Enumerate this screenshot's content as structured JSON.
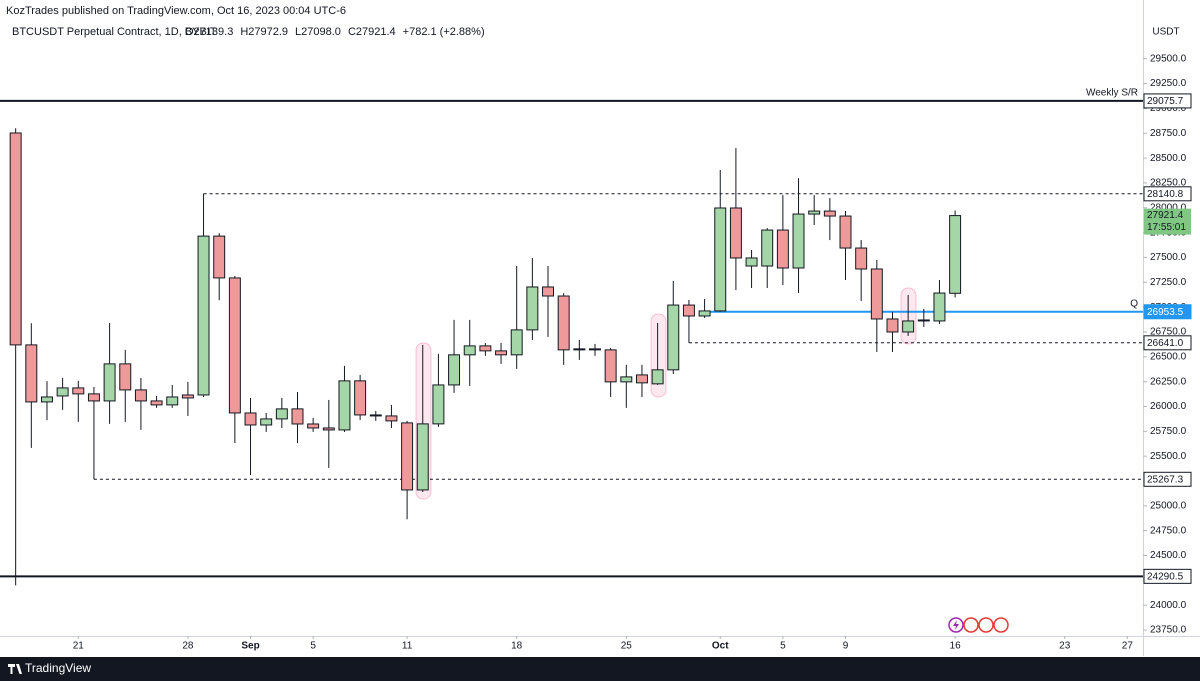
{
  "header": "KozTrades published on TradingView.com, Oct 16, 2023 00:04 UTC-6",
  "brand": "TradingView",
  "chart_data": {
    "type": "candlestick",
    "title": "BTCUSDT Perpetual Contract, 1D, BYBIT",
    "legend_values": [
      "O27139.3",
      "H27972.9",
      "L27098.0",
      "C27921.4",
      "+782.1 (+2.88%)"
    ],
    "currency": "USDT",
    "countdown": "17:55:01",
    "up_color": "#a5d6a7",
    "down_color": "#ef9a9a",
    "wick_color": "#131722",
    "last_price_color": "#81c784",
    "grid": false,
    "x": [
      "Aug 17",
      "Aug 18",
      "Aug 19",
      "Aug 20",
      "Aug 21",
      "Aug 22",
      "Aug 23",
      "Aug 24",
      "Aug 25",
      "Aug 26",
      "Aug 27",
      "Aug 28",
      "Aug 29",
      "Aug 30",
      "Aug 31",
      "Sep 1",
      "Sep 2",
      "Sep 3",
      "Sep 4",
      "Sep 5",
      "Sep 6",
      "Sep 7",
      "Sep 8",
      "Sep 9",
      "Sep 10",
      "Sep 11",
      "Sep 12",
      "Sep 13",
      "Sep 14",
      "Sep 15",
      "Sep 16",
      "Sep 17",
      "Sep 18",
      "Sep 19",
      "Sep 20",
      "Sep 21",
      "Sep 22",
      "Sep 23",
      "Sep 24",
      "Sep 25",
      "Sep 26",
      "Sep 27",
      "Sep 28",
      "Sep 29",
      "Sep 30",
      "Oct 1",
      "Oct 2",
      "Oct 3",
      "Oct 4",
      "Oct 5",
      "Oct 6",
      "Oct 7",
      "Oct 8",
      "Oct 9",
      "Oct 10",
      "Oct 11",
      "Oct 12",
      "Oct 13",
      "Oct 14",
      "Oct 15",
      "Oct 16"
    ],
    "open": [
      28753,
      26620,
      26046,
      26106,
      26187,
      26127,
      26056,
      26429,
      26167,
      26056,
      26016,
      26116,
      26116,
      27715,
      27294,
      25935,
      25814,
      25875,
      25976,
      25824,
      25784,
      25764,
      26258,
      25915,
      25905,
      25835,
      25160,
      25825,
      26217,
      26520,
      26610,
      26560,
      26520,
      26771,
      27203,
      27112,
      26580,
      26570,
      26570,
      26248,
      26318,
      26228,
      26369,
      27021,
      26911,
      26962,
      27998,
      27414,
      27414,
      27776,
      27394,
      27937,
      27967,
      27917,
      27595,
      27384,
      26881,
      26750,
      26861,
      26861,
      27139.3
    ],
    "high": [
      28800,
      26838,
      26255,
      26288,
      26258,
      26197,
      26841,
      26570,
      26288,
      26106,
      26217,
      26248,
      28140.8,
      27745,
      27314,
      26086,
      25935,
      26086,
      26146,
      25885,
      26066,
      26409,
      26318,
      25955,
      26016,
      25855,
      26620,
      26530,
      26872,
      26872,
      26640,
      26640,
      27414,
      27495,
      27414,
      27142,
      26670,
      26630,
      26590,
      26419,
      26419,
      26841,
      27264,
      27072,
      27082,
      28380,
      28601,
      27575,
      27796,
      28128,
      28298,
      28128,
      28098,
      27967,
      27675,
      27475,
      26952,
      27122,
      26982,
      27273,
      27972.9
    ],
    "low": [
      24200,
      25583,
      25862,
      25966,
      25845,
      25267.3,
      25825,
      25845,
      25765,
      25986,
      25986,
      25905,
      26096,
      27070,
      25633,
      25311,
      25744,
      25784,
      25633,
      25744,
      25382,
      25744,
      25865,
      25855,
      25784,
      24865,
      25140,
      25795,
      26137,
      26207,
      26510,
      26429,
      26379,
      26670,
      26700,
      26419,
      26469,
      26510,
      26096,
      25986,
      26096,
      26217,
      26328,
      26641,
      26891,
      26953.5,
      27173,
      27193,
      27193,
      27223,
      27142,
      27826,
      27675,
      27273,
      27062,
      26549,
      26549,
      26710,
      26801,
      26831,
      27098
    ],
    "close": [
      26620,
      26046,
      26096,
      26187,
      26127,
      26056,
      26429,
      26167,
      26056,
      26016,
      26096,
      26086,
      27715,
      27294,
      25935,
      25814,
      25875,
      25976,
      25824,
      25784,
      25764,
      26258,
      25915,
      25905,
      25855,
      25160,
      25825,
      26217,
      26520,
      26610,
      26560,
      26520,
      26771,
      27203,
      27112,
      26570,
      26570,
      26580,
      26248,
      26298,
      26238,
      26369,
      27021,
      26911,
      26962,
      27998,
      27495,
      27495,
      27776,
      27394,
      27937,
      27967,
      27917,
      27595,
      27384,
      26881,
      26750,
      26861,
      26871,
      27142,
      27921.4
    ],
    "xlim": [
      "Aug 16",
      "Oct 28"
    ],
    "xticks": [
      {
        "value": "Aug 21",
        "label": "21"
      },
      {
        "value": "Aug 28",
        "label": "28"
      },
      {
        "value": "Sep 1",
        "label": "Sep"
      },
      {
        "value": "Sep 5",
        "label": "5"
      },
      {
        "value": "Sep 11",
        "label": "11"
      },
      {
        "value": "Sep 18",
        "label": "18"
      },
      {
        "value": "Sep 25",
        "label": "25"
      },
      {
        "value": "Oct 1",
        "label": "Oct"
      },
      {
        "value": "Oct 5",
        "label": "5"
      },
      {
        "value": "Oct 9",
        "label": "9"
      },
      {
        "value": "Oct 16",
        "label": "16"
      },
      {
        "value": "Oct 23",
        "label": "23"
      },
      {
        "value": "Oct 27",
        "label": "27"
      }
    ],
    "ylim": [
      23690,
      29870
    ],
    "yticks": [
      {
        "value": 23750,
        "label": "23750.0"
      },
      {
        "value": 24000,
        "label": "24000.0"
      },
      {
        "value": 24250,
        "label": "24250.0"
      },
      {
        "value": 24500,
        "label": "24500.0"
      },
      {
        "value": 24750,
        "label": "24750.0"
      },
      {
        "value": 25000,
        "label": "25000.0"
      },
      {
        "value": 25250,
        "label": "25250.0"
      },
      {
        "value": 25500,
        "label": "25500.0"
      },
      {
        "value": 25750,
        "label": "25750.0"
      },
      {
        "value": 26000,
        "label": "26000.0"
      },
      {
        "value": 26250,
        "label": "26250.0"
      },
      {
        "value": 26500,
        "label": "26500.0"
      },
      {
        "value": 26750,
        "label": "26750.0"
      },
      {
        "value": 27000,
        "label": "27000.0"
      },
      {
        "value": 27250,
        "label": "27250.0"
      },
      {
        "value": 27500,
        "label": "27500.0"
      },
      {
        "value": 27750,
        "label": "27750.0"
      },
      {
        "value": 28000,
        "label": "28000.0"
      },
      {
        "value": 28250,
        "label": "28250.0"
      },
      {
        "value": 28500,
        "label": "28500.0"
      },
      {
        "value": 28750,
        "label": "28750.0"
      },
      {
        "value": 29000,
        "label": "29000.0"
      },
      {
        "value": 29250,
        "label": "29250.0"
      },
      {
        "value": 29500,
        "label": "29500.0"
      }
    ],
    "levels": [
      {
        "price": 29075.7,
        "style": "solid",
        "color": "#131722",
        "note": "Weekly S/R"
      },
      {
        "price": 28140.8,
        "style": "dashed",
        "color": "#131722",
        "from": "Aug 29"
      },
      {
        "price": {
          "value": 26641,
          "label": "26641.0"
        },
        "style": "dashed",
        "color": "#131722",
        "from": "Sep 29"
      },
      {
        "price": 26953.5,
        "style": "solid",
        "color": "#2196f3",
        "from": "Sep 30",
        "note": "Q"
      },
      {
        "price": 25267.3,
        "style": "dashed",
        "color": "#131722",
        "from": "Aug 22"
      },
      {
        "price": 24290.5,
        "style": "solid",
        "color": "#131722"
      }
    ]
  }
}
